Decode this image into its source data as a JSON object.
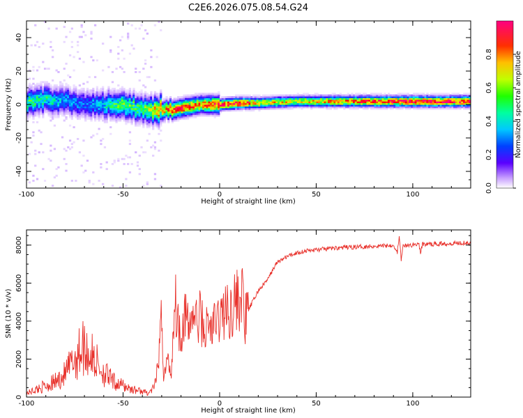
{
  "title": "C2E6.2026.075.08.54.G24",
  "chart_data": [
    {
      "type": "heatmap",
      "xlabel": "Height of straight line (km)",
      "ylabel": "Frequency (Hz)",
      "xlim": [
        -100,
        130
      ],
      "ylim": [
        -50,
        50
      ],
      "xticks": [
        -100,
        -50,
        0,
        50,
        100
      ],
      "yticks": [
        -40,
        -20,
        0,
        20,
        40
      ],
      "colorbar": {
        "label": "Normalized spectral amplitude",
        "range": [
          0,
          1
        ],
        "ticks": [
          0.0,
          0.2,
          0.4,
          0.6,
          0.8
        ],
        "colors": [
          "#ffffff",
          "#c8a0ff",
          "#4000ff",
          "#0060ff",
          "#00e0ff",
          "#00ff60",
          "#a0ff00",
          "#ffe000",
          "#ff6000",
          "#ff0000",
          "#ff0080"
        ]
      },
      "ridge": {
        "x": [
          -100,
          -90,
          -80,
          -70,
          -60,
          -50,
          -40,
          -30,
          -20,
          -10,
          0,
          10,
          20,
          40,
          60,
          80,
          100,
          130
        ],
        "center_freq": [
          2,
          3,
          2,
          1,
          0,
          0,
          -3,
          -3,
          -2,
          0,
          0,
          1,
          1,
          2,
          2,
          2,
          2,
          2
        ],
        "peak_amplitude": [
          0.5,
          0.45,
          0.35,
          0.3,
          0.4,
          0.55,
          0.5,
          0.8,
          0.85,
          0.75,
          0.9,
          0.95,
          0.7,
          0.65,
          0.75,
          0.85,
          0.9,
          0.9
        ]
      }
    },
    {
      "type": "line",
      "xlabel": "Height of straight line (km)",
      "ylabel": "SNR (10 * v/v)",
      "xlim": [
        -100,
        130
      ],
      "ylim": [
        0,
        8800
      ],
      "xticks": [
        -100,
        -50,
        0,
        50,
        100
      ],
      "yticks": [
        0,
        2000,
        4000,
        6000,
        8000
      ],
      "color": "#e8302a",
      "series": [
        {
          "x": [
            -100,
            -95,
            -90,
            -85,
            -80,
            -75,
            -72,
            -70,
            -68,
            -65,
            -60,
            -55,
            -50,
            -45,
            -40,
            -37,
            -35,
            -33,
            -31,
            -30,
            -29,
            -27,
            -25,
            -24,
            -23,
            -22,
            -20,
            -18,
            -16,
            -15,
            -13,
            -11,
            -10,
            -8,
            -6,
            -4,
            -2,
            0,
            3,
            5,
            7,
            10,
            12,
            13,
            15,
            18,
            20,
            25,
            28,
            30,
            35,
            40,
            45,
            50,
            55,
            60,
            70,
            80,
            90,
            92,
            93,
            94,
            95,
            100,
            103,
            104,
            105,
            110,
            120,
            130
          ],
          "y": [
            200,
            400,
            600,
            800,
            1200,
            2000,
            2500,
            2700,
            2300,
            2000,
            1300,
            800,
            600,
            400,
            300,
            200,
            400,
            800,
            2600,
            4600,
            1000,
            2000,
            1200,
            3800,
            5200,
            4200,
            3200,
            4600,
            3400,
            4200,
            4300,
            3800,
            4400,
            3400,
            3800,
            3600,
            3900,
            4200,
            4600,
            4300,
            5000,
            5100,
            5300,
            3900,
            4600,
            5200,
            5600,
            6200,
            6800,
            7100,
            7400,
            7600,
            7700,
            7750,
            7800,
            7850,
            7900,
            7950,
            8000,
            7600,
            8500,
            7200,
            7950,
            8000,
            8100,
            7600,
            8050,
            8050,
            8100,
            8150
          ]
        }
      ]
    }
  ]
}
